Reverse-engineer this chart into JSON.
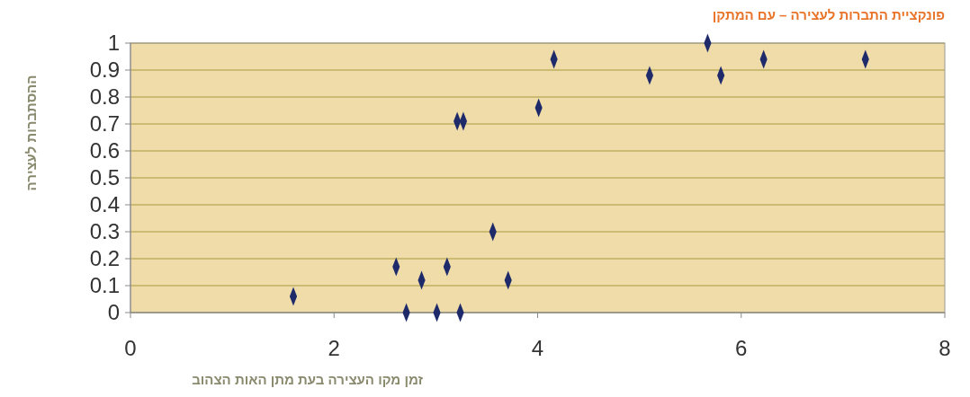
{
  "chart_data": {
    "type": "scatter",
    "title": "פונקציית התברות לעצירה – עם המתקן",
    "xlabel": "זמן מקו העצירה בעת מתן האות הצהוב",
    "ylabel": "ההסתברות לעצירה",
    "x": [
      1.6,
      2.61,
      2.86,
      2.71,
      3.01,
      3.24,
      3.11,
      3.21,
      3.27,
      3.56,
      3.71,
      4.01,
      4.16,
      5.1,
      5.67,
      5.8,
      6.22,
      7.22
    ],
    "values": [
      0.06,
      0.17,
      0.12,
      0,
      0,
      0,
      0.17,
      0.71,
      0.71,
      0.3,
      0.12,
      0.76,
      0.94,
      0.88,
      1,
      0.88,
      0.94,
      0.94
    ],
    "color": "#1f2a6b",
    "marker": "diamond",
    "xlim": [
      0,
      8
    ],
    "xticks": [
      0,
      2,
      4,
      6,
      8
    ],
    "ylim": [
      0,
      1
    ],
    "yticks": [
      0,
      0.1,
      0.2,
      0.3,
      0.4,
      0.5,
      0.6,
      0.7,
      0.8,
      0.9,
      1
    ],
    "grid": "y"
  }
}
